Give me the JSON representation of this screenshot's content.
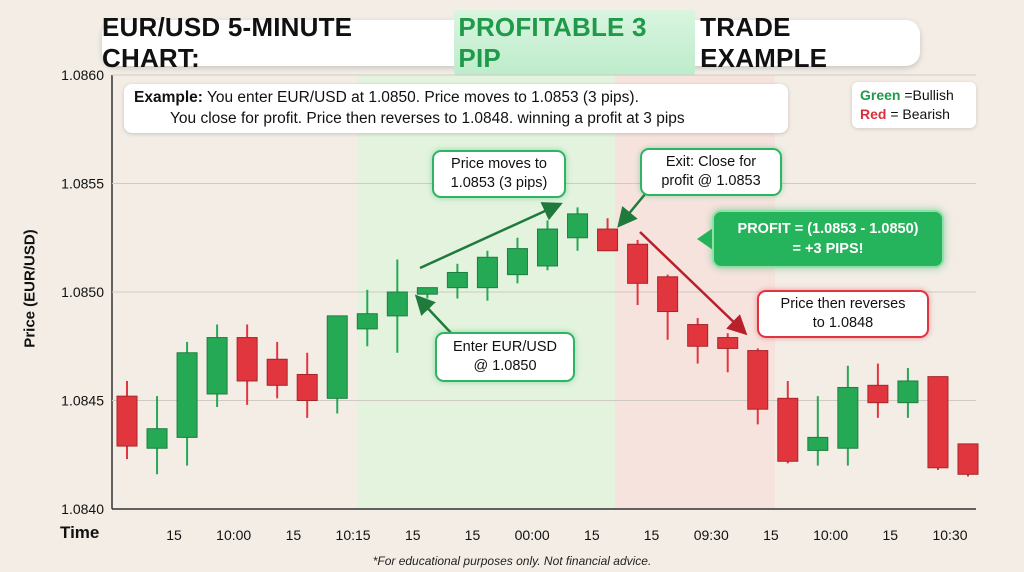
{
  "title": {
    "prefix": "EUR/USD 5-MINUTE CHART:",
    "highlight": "PROFITABLE 3 PIP",
    "suffix": "TRADE EXAMPLE"
  },
  "example": {
    "label": "Example:",
    "line1": " You enter EUR/USD at 1.0850. Price moves to 1.0853 (3 pips).",
    "line2": "You close for profit. Price then reverses to 1.0848. winning a profit at 3 pips"
  },
  "legend": {
    "green_word": "Green",
    "green_text": " =Bullish",
    "red_word": "Red",
    "red_text": " = Bearish"
  },
  "callouts": {
    "moves_line1": "Price moves to",
    "moves_line2": "1.0853 (3 pips)",
    "exit_line1": "Exit: Close for",
    "exit_line2": "profit @ 1.0853",
    "profit_line1": "PROFIT = (1.0853 - 1.0850)",
    "profit_line2": "= +3 PIPS!",
    "reverse_line1": "Price then reverses",
    "reverse_line2": "to 1.0848",
    "enter_line1": "Enter EUR/USD",
    "enter_line2": "@ 1.0850"
  },
  "axis": {
    "y_title": "Price (EUR/USD)",
    "x_title": "Time"
  },
  "footnote": "*For educational purposes only. Not financial advice.",
  "colors": {
    "bullish": "#26a955",
    "bearish": "#e2363f",
    "entry_zone": "#dff3dc",
    "exit_zone": "#f7e1dc",
    "grid": "#cfcac3"
  },
  "chart_data": {
    "type": "candlestick",
    "ylim": [
      1.084,
      1.086
    ],
    "y_ticks": [
      "1.0840",
      "1.0845",
      "1.0850",
      "1.0855",
      "1.0860"
    ],
    "x_ticks": [
      "15",
      "10:00",
      "15",
      "10:15",
      "15",
      "15",
      "00:00",
      "15",
      "15",
      "09:30",
      "15",
      "10:00",
      "15",
      "10:30"
    ],
    "candles": [
      {
        "o": 1.08452,
        "h": 1.08459,
        "l": 1.08423,
        "c": 1.08429
      },
      {
        "o": 1.08428,
        "h": 1.08452,
        "l": 1.08416,
        "c": 1.08437
      },
      {
        "o": 1.08433,
        "h": 1.08477,
        "l": 1.0842,
        "c": 1.08472
      },
      {
        "o": 1.08453,
        "h": 1.08485,
        "l": 1.08447,
        "c": 1.08479
      },
      {
        "o": 1.08479,
        "h": 1.08485,
        "l": 1.08448,
        "c": 1.08459
      },
      {
        "o": 1.08469,
        "h": 1.08477,
        "l": 1.08451,
        "c": 1.08457
      },
      {
        "o": 1.08462,
        "h": 1.08472,
        "l": 1.08442,
        "c": 1.0845
      },
      {
        "o": 1.08451,
        "h": 1.08489,
        "l": 1.08444,
        "c": 1.08489
      },
      {
        "o": 1.08483,
        "h": 1.08501,
        "l": 1.08475,
        "c": 1.0849
      },
      {
        "o": 1.08489,
        "h": 1.08515,
        "l": 1.08472,
        "c": 1.085
      },
      {
        "o": 1.08499,
        "h": 1.08502,
        "l": 1.08497,
        "c": 1.08502
      },
      {
        "o": 1.08502,
        "h": 1.08513,
        "l": 1.08497,
        "c": 1.08509
      },
      {
        "o": 1.08502,
        "h": 1.08519,
        "l": 1.08496,
        "c": 1.08516
      },
      {
        "o": 1.08508,
        "h": 1.08525,
        "l": 1.08504,
        "c": 1.0852
      },
      {
        "o": 1.08512,
        "h": 1.08533,
        "l": 1.0851,
        "c": 1.08529
      },
      {
        "o": 1.08525,
        "h": 1.08539,
        "l": 1.08519,
        "c": 1.08536
      },
      {
        "o": 1.08529,
        "h": 1.08534,
        "l": 1.08519,
        "c": 1.08519
      },
      {
        "o": 1.08522,
        "h": 1.08524,
        "l": 1.08494,
        "c": 1.08504
      },
      {
        "o": 1.08507,
        "h": 1.08508,
        "l": 1.08478,
        "c": 1.08491
      },
      {
        "o": 1.08485,
        "h": 1.08488,
        "l": 1.08467,
        "c": 1.08475
      },
      {
        "o": 1.08479,
        "h": 1.08481,
        "l": 1.08463,
        "c": 1.08474
      },
      {
        "o": 1.08473,
        "h": 1.08474,
        "l": 1.08439,
        "c": 1.08446
      },
      {
        "o": 1.08451,
        "h": 1.08459,
        "l": 1.08421,
        "c": 1.08422
      },
      {
        "o": 1.08427,
        "h": 1.08452,
        "l": 1.0842,
        "c": 1.08433
      },
      {
        "o": 1.08428,
        "h": 1.08466,
        "l": 1.0842,
        "c": 1.08456
      },
      {
        "o": 1.08457,
        "h": 1.08467,
        "l": 1.08442,
        "c": 1.08449
      },
      {
        "o": 1.08449,
        "h": 1.08465,
        "l": 1.08442,
        "c": 1.08459
      },
      {
        "o": 1.08461,
        "h": 1.08461,
        "l": 1.08418,
        "c": 1.08419
      },
      {
        "o": 1.0843,
        "h": 1.0843,
        "l": 1.08415,
        "c": 1.08416
      }
    ]
  }
}
